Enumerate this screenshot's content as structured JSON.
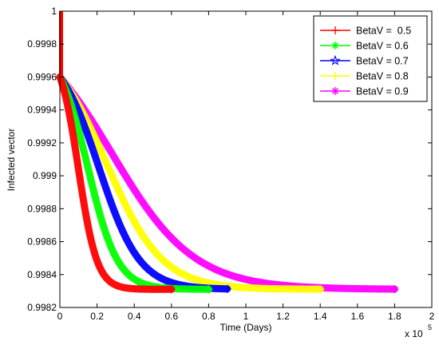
{
  "chart_data": {
    "type": "line",
    "xlabel": "Time (Days)",
    "ylabel": "Infected vector",
    "x_multiplier_label": "x 10",
    "x_multiplier_exp": "5",
    "xlim": [
      0,
      200000
    ],
    "ylim": [
      0.9982,
      1.0
    ],
    "x_ticks": [
      0,
      20000,
      40000,
      60000,
      80000,
      100000,
      120000,
      140000,
      160000,
      180000,
      200000
    ],
    "x_tick_labels": [
      "0",
      "0.2",
      "0.4",
      "0.6",
      "0.8",
      "1",
      "1.2",
      "1.4",
      "1.6",
      "1.8",
      "2"
    ],
    "y_ticks": [
      0.9982,
      0.9984,
      0.9986,
      0.9988,
      0.999,
      0.9992,
      0.9994,
      0.9996,
      0.9998,
      1.0
    ],
    "y_tick_labels": [
      "0.9982",
      "0.9984",
      "0.9986",
      "0.9988",
      "0.999",
      "0.9992",
      "0.9994",
      "0.9996",
      "0.9998",
      "1"
    ],
    "grid": false,
    "legend_position": "top-right",
    "y_start": 1.0,
    "y_knee": 0.9996,
    "y_final": 0.99831,
    "series": [
      {
        "name": "BetaV =  0.5",
        "color": "#ff0000",
        "marker": "plus",
        "x_end": 60000,
        "inflection": 10000,
        "width": 5000
      },
      {
        "name": "BetaV = 0.6",
        "color": "#00ff00",
        "marker": "star",
        "x_end": 80000,
        "inflection": 15000,
        "width": 8000
      },
      {
        "name": "BetaV = 0.7",
        "color": "#0000ff",
        "marker": "pentagram",
        "x_end": 90000,
        "inflection": 21000,
        "width": 11000
      },
      {
        "name": "BetaV = 0.8",
        "color": "#ffff00",
        "marker": "plus",
        "x_end": 140000,
        "inflection": 25000,
        "width": 15000
      },
      {
        "name": "BetaV = 0.9",
        "color": "#ff00ff",
        "marker": "star",
        "x_end": 180000,
        "inflection": 28000,
        "width": 22000
      }
    ]
  }
}
